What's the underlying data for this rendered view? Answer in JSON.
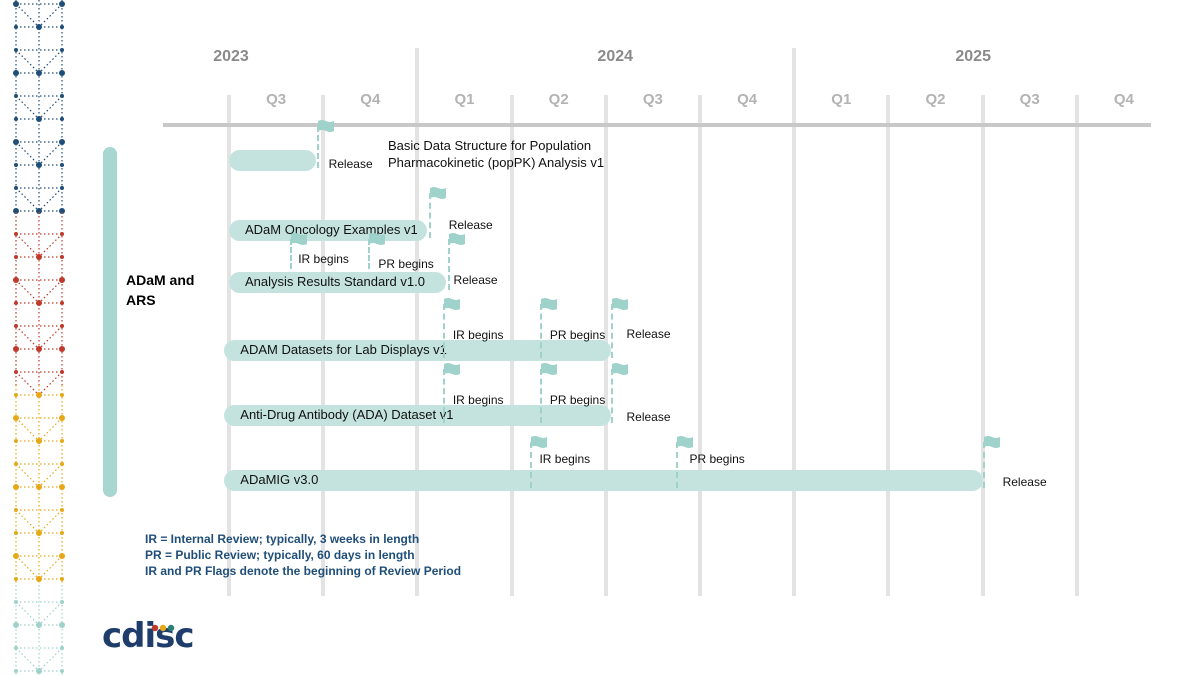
{
  "chart_data": {
    "type": "gantt",
    "years": [
      {
        "label": "2023",
        "q": 2.5
      },
      {
        "label": "2024",
        "q": 6.5
      },
      {
        "label": "2025",
        "q": 10.5
      }
    ],
    "quarters": [
      "Q3",
      "Q4",
      "Q1",
      "Q2",
      "Q3",
      "Q4",
      "Q1",
      "Q2",
      "Q3",
      "Q4"
    ],
    "group_label": "ADaM and ARS",
    "bars": [
      {
        "id": "popPK",
        "label": "",
        "start": 0.0,
        "end": 0.92
      },
      {
        "id": "onco",
        "label": "ADaM Oncology Examples v1",
        "start": 0.0,
        "end": 2.1
      },
      {
        "id": "ars",
        "label": "Analysis Results Standard v1.0",
        "start": 0.0,
        "end": 2.3
      },
      {
        "id": "lab",
        "label": "ADAM Datasets for Lab Displays v1",
        "start": -0.05,
        "end": 4.05
      },
      {
        "id": "ada",
        "label": "Anti-Drug Antibody (ADA) Dataset v1",
        "start": -0.05,
        "end": 4.05
      },
      {
        "id": "adamig",
        "label": "ADaMIG v3.0",
        "start": -0.05,
        "end": 8.0
      }
    ],
    "top_note": [
      "Basic Data Structure for Population",
      "Pharmacokinetic (popPK) Analysis v1"
    ],
    "milestones": [
      {
        "bar": "popPK",
        "label": "Release",
        "q": 0.93,
        "type": "Release"
      },
      {
        "bar": "onco",
        "label": "Release",
        "q": 2.12,
        "type": "Release"
      },
      {
        "bar": "ars",
        "label": "IR begins",
        "q": 0.65,
        "type": "IR"
      },
      {
        "bar": "ars",
        "label": "PR begins",
        "q": 1.48,
        "type": "PR"
      },
      {
        "bar": "ars",
        "label": "Release",
        "q": 2.32,
        "type": "Release"
      },
      {
        "bar": "lab",
        "label": "IR begins",
        "q": 2.27,
        "type": "IR"
      },
      {
        "bar": "lab",
        "label": "PR begins",
        "q": 3.3,
        "type": "PR"
      },
      {
        "bar": "lab",
        "label": "Release",
        "q": 4.05,
        "type": "Release"
      },
      {
        "bar": "ada",
        "label": "IR begins",
        "q": 2.27,
        "type": "IR"
      },
      {
        "bar": "ada",
        "label": "PR begins",
        "q": 3.3,
        "type": "PR"
      },
      {
        "bar": "ada",
        "label": "Release",
        "q": 4.05,
        "type": "Release"
      },
      {
        "bar": "adamig",
        "label": "IR begins",
        "q": 3.2,
        "type": "IR"
      },
      {
        "bar": "adamig",
        "label": "PR begins",
        "q": 4.75,
        "type": "PR"
      },
      {
        "bar": "adamig",
        "label": "Release",
        "q": 8.0,
        "type": "Release"
      }
    ]
  },
  "legend": [
    "IR = Internal Review; typically, 3 weeks in length",
    "PR = Public Review; typically, 60 days in length",
    "IR and PR Flags denote the beginning of Review Period"
  ],
  "logo_text": "cdisc",
  "colors": {
    "bar": "#c4e3df",
    "flag": "#9fd2cb",
    "group": "#a8d6d0",
    "legend": "#1f4e79",
    "logo": "#1f3d6b"
  }
}
